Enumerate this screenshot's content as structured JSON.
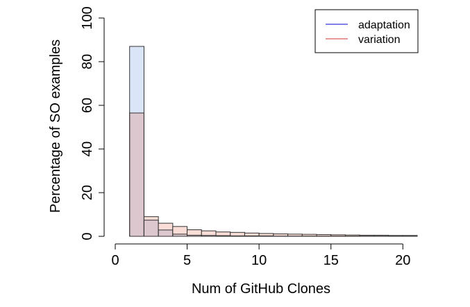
{
  "chart_data": {
    "type": "bar",
    "subtype": "overlapping-histogram",
    "xlabel": "Num of GitHub Clones",
    "ylabel": "Percentage of SO examples",
    "xlim": [
      0,
      21
    ],
    "ylim": [
      0,
      100
    ],
    "xticks": [
      0,
      5,
      10,
      15,
      20
    ],
    "yticks": [
      0,
      20,
      40,
      60,
      80,
      100
    ],
    "legend_position": "top-right",
    "bin_edges": [
      1,
      2,
      3,
      4,
      5,
      6,
      7,
      8,
      9,
      10,
      11,
      12,
      13,
      14,
      15,
      16,
      17,
      18,
      19,
      20,
      21
    ],
    "series": [
      {
        "name": "adaptation",
        "legend_color": "#0000cc",
        "fill_color": "#dae6f8",
        "values": [
          87.0,
          7.4,
          2.9,
          1.0,
          0.5,
          0.4,
          0.3,
          0.2,
          0.2,
          0.2,
          0.1,
          0.1,
          0.1,
          0.1,
          0.1,
          0.1,
          0.1,
          0.1,
          0.1,
          0.1
        ]
      },
      {
        "name": "variation",
        "legend_color": "#cc3333",
        "fill_color": "#f9ddd6",
        "values": [
          56.5,
          9.0,
          6.0,
          4.5,
          3.0,
          2.5,
          2.0,
          1.8,
          1.5,
          1.3,
          1.1,
          1.0,
          0.9,
          0.8,
          0.7,
          0.6,
          0.5,
          0.5,
          0.4,
          0.4
        ]
      }
    ],
    "overlap_color": "#ddc7cf"
  }
}
